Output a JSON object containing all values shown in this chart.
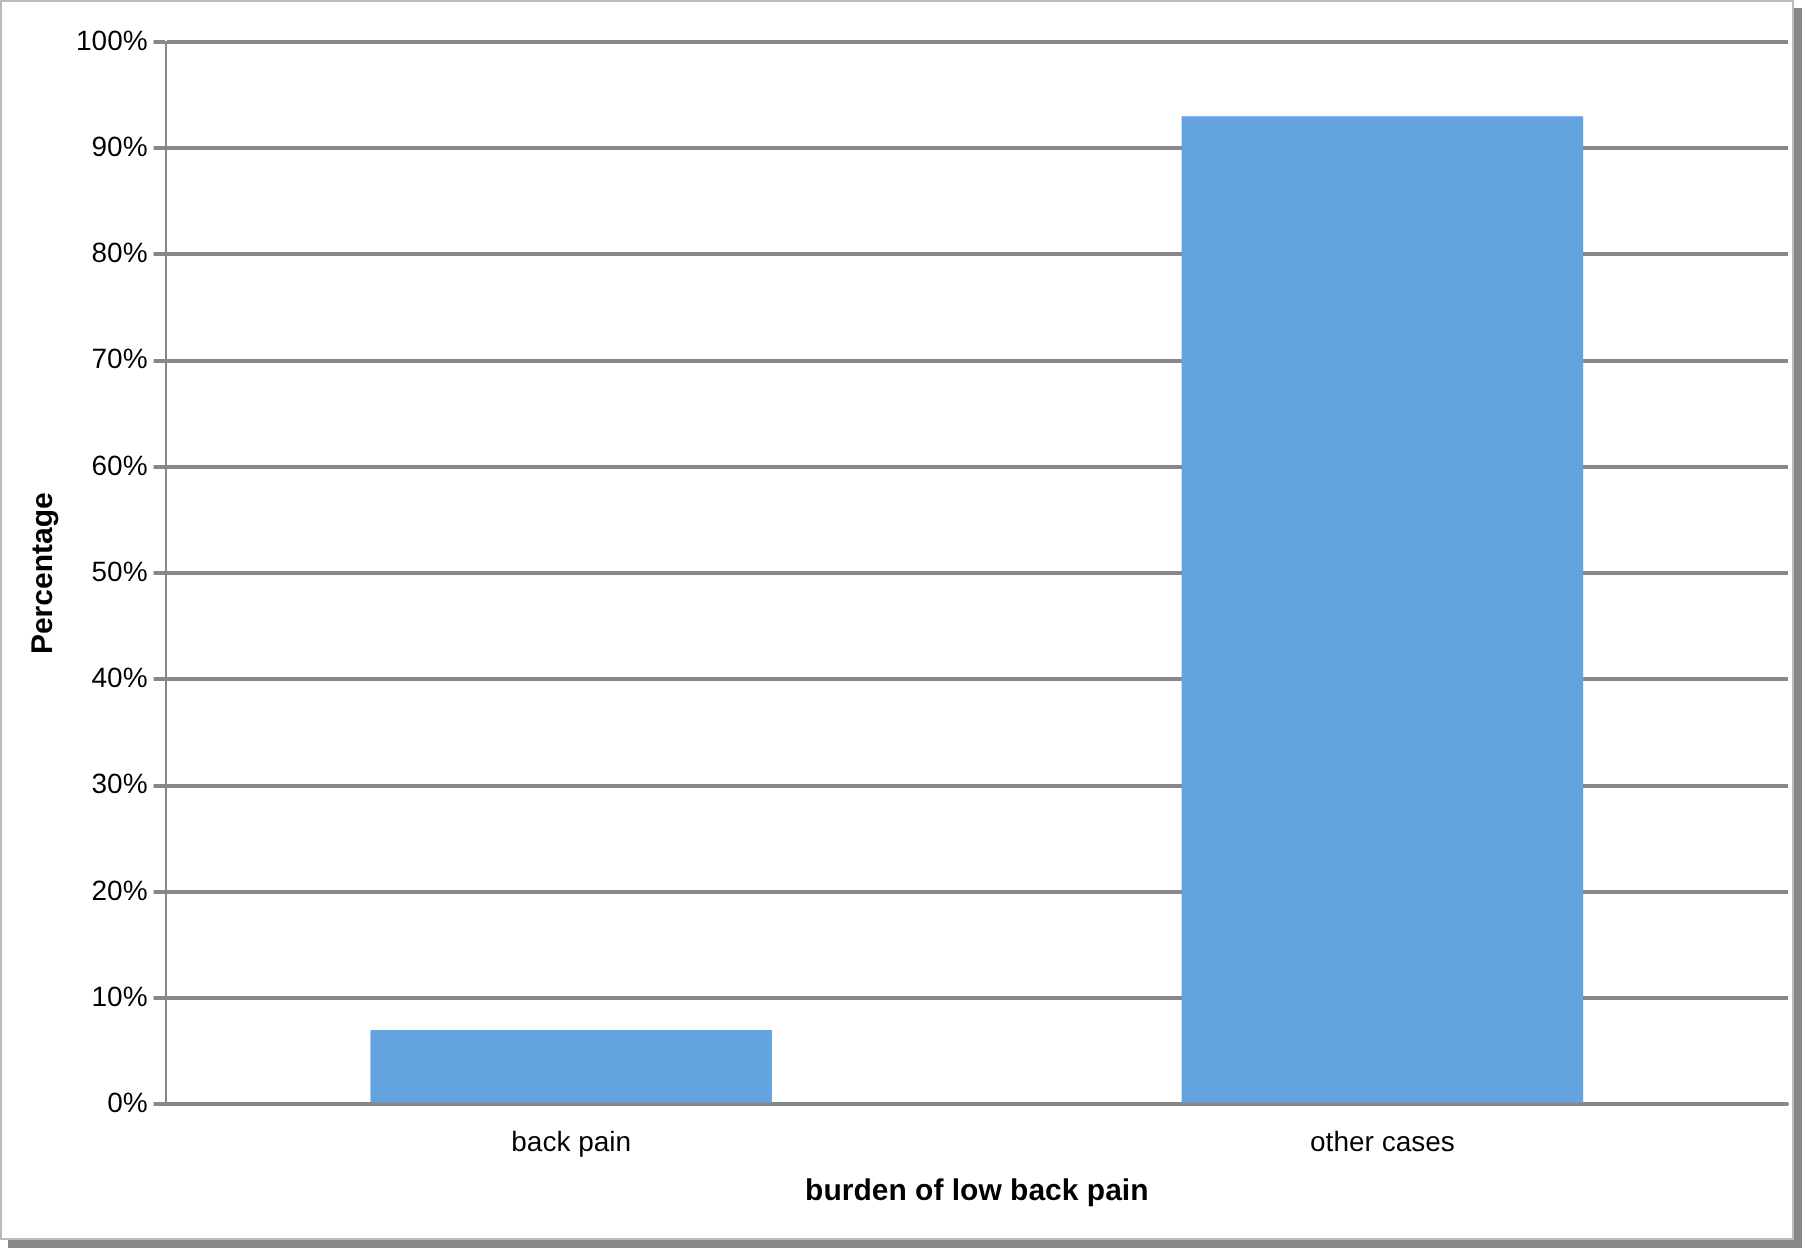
{
  "chart_data": {
    "type": "bar",
    "xlabel": "burden of low back pain",
    "ylabel": "Percentage",
    "categories": [
      "back pain",
      "other cases"
    ],
    "values": [
      7,
      93
    ],
    "color": "#63a4e0",
    "ylim": [
      0,
      100
    ],
    "yticks": [
      {
        "value": 0,
        "label": "0%"
      },
      {
        "value": 10,
        "label": "10%"
      },
      {
        "value": 20,
        "label": "20%"
      },
      {
        "value": 30,
        "label": "30%"
      },
      {
        "value": 40,
        "label": "40%"
      },
      {
        "value": 50,
        "label": "50%"
      },
      {
        "value": 60,
        "label": "60%"
      },
      {
        "value": 70,
        "label": "70%"
      },
      {
        "value": 80,
        "label": "80%"
      },
      {
        "value": 90,
        "label": "90%"
      },
      {
        "value": 100,
        "label": "100%"
      }
    ],
    "grid": "y",
    "legend": false
  }
}
